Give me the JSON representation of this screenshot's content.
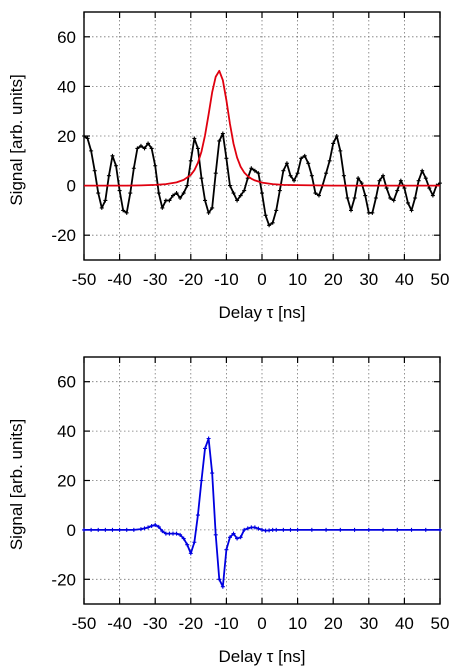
{
  "chart_data": [
    {
      "type": "line",
      "title": "",
      "xlabel": "Delay τ [ns]",
      "ylabel": "Signal [arb. units]",
      "xlim": [
        -50,
        50
      ],
      "ylim": [
        -30,
        70
      ],
      "xticks": [
        -50,
        -40,
        -30,
        -20,
        -10,
        0,
        10,
        20,
        30,
        40,
        50
      ],
      "yticks": [
        -20,
        0,
        20,
        40,
        60
      ],
      "grid": true,
      "series": [
        {
          "color": "#000000",
          "markers": true,
          "x": [
            -50,
            -49,
            -48,
            -47,
            -46,
            -45,
            -44,
            -43,
            -42,
            -41,
            -40,
            -39,
            -38,
            -37,
            -36,
            -35,
            -34,
            -33,
            -32,
            -31,
            -30,
            -29,
            -28,
            -27,
            -26,
            -25,
            -24,
            -23,
            -22,
            -21,
            -20,
            -19,
            -18,
            -17,
            -16,
            -15,
            -14,
            -13,
            -12,
            -11,
            -10,
            -9,
            -8,
            -7,
            -6,
            -5,
            -4,
            -3,
            -2,
            -1,
            0,
            1,
            2,
            3,
            4,
            5,
            6,
            7,
            8,
            9,
            10,
            11,
            12,
            13,
            14,
            15,
            16,
            17,
            18,
            19,
            20,
            21,
            22,
            23,
            24,
            25,
            26,
            27,
            28,
            29,
            30,
            31,
            32,
            33,
            34,
            35,
            36,
            37,
            38,
            39,
            40,
            41,
            42,
            43,
            44,
            45,
            46,
            47,
            48,
            49,
            50
          ],
          "y": [
            20,
            19,
            14,
            6,
            -3,
            -9,
            -6,
            4,
            12,
            8,
            -2,
            -10,
            -11,
            -3,
            7,
            15,
            16,
            15,
            17,
            15,
            8,
            -3,
            -9,
            -6,
            -6,
            -4,
            -3,
            -5,
            -3,
            0,
            10,
            19,
            15,
            3,
            -6,
            -11,
            -9,
            5,
            18,
            21,
            11,
            0,
            -3,
            -6,
            -4,
            -2,
            3,
            7,
            6,
            5,
            -3,
            -12,
            -16,
            -15,
            -10,
            -2,
            6,
            9,
            4,
            2,
            5,
            11,
            12,
            9,
            4,
            -3,
            -4,
            0,
            5,
            10,
            17,
            20,
            14,
            4,
            -5,
            -10,
            -5,
            3,
            1,
            -4,
            -11,
            -11,
            -5,
            2,
            4,
            -1,
            -5,
            -6,
            -2,
            2,
            -1,
            -7,
            -10,
            -5,
            2,
            6,
            3,
            -1,
            -4,
            0,
            1
          ]
        },
        {
          "color": "#e0000f",
          "markers": false,
          "x": [
            -50,
            -46,
            -42,
            -38,
            -34,
            -30,
            -27,
            -24,
            -22,
            -20,
            -19,
            -18,
            -17,
            -16,
            -15,
            -14,
            -13,
            -12,
            -11,
            -10,
            -9,
            -8,
            -7,
            -6,
            -5,
            -4,
            -3,
            -2,
            0,
            3,
            6,
            10,
            15,
            20,
            30,
            40,
            50
          ],
          "y": [
            0,
            0,
            0,
            0,
            0.1,
            0.3,
            0.6,
            1.3,
            2.3,
            4.3,
            6.2,
            9.2,
            13.7,
            20.3,
            28.7,
            37.6,
            43.9,
            46.3,
            42.5,
            34.4,
            24.9,
            16.9,
            11.3,
            7.6,
            5.3,
            3.8,
            2.8,
            2.1,
            1.2,
            0.6,
            0.3,
            0.2,
            0.1,
            0,
            0,
            0,
            0
          ]
        }
      ]
    },
    {
      "type": "line",
      "title": "",
      "xlabel": "Delay τ [ns]",
      "ylabel": "Signal [arb. units]",
      "xlim": [
        -50,
        50
      ],
      "ylim": [
        -30,
        70
      ],
      "xticks": [
        -50,
        -40,
        -30,
        -20,
        -10,
        0,
        10,
        20,
        30,
        40,
        50
      ],
      "yticks": [
        -20,
        0,
        20,
        40,
        60
      ],
      "grid": true,
      "series": [
        {
          "color": "#0000e0",
          "markers": true,
          "x": [
            -50,
            -48,
            -46,
            -44,
            -42,
            -40,
            -38,
            -36,
            -34,
            -33,
            -32,
            -31,
            -30,
            -29,
            -28,
            -27,
            -26,
            -25,
            -24,
            -23,
            -22,
            -21,
            -20,
            -19,
            -18,
            -17,
            -16,
            -15,
            -14,
            -13,
            -12,
            -11,
            -10,
            -9,
            -8,
            -7,
            -6,
            -5,
            -4,
            -3,
            -2,
            -1,
            0,
            1,
            2,
            3,
            4,
            6,
            8,
            10,
            14,
            18,
            22,
            26,
            30,
            34,
            38,
            42,
            46,
            50
          ],
          "y": [
            0,
            0,
            0,
            0,
            0,
            0,
            0,
            0,
            0.3,
            0.6,
            1,
            1.6,
            2,
            1.2,
            -0.5,
            -1.5,
            -1.5,
            -1.5,
            -1.5,
            -2,
            -3.5,
            -6,
            -9.5,
            -5,
            6,
            20,
            33,
            37,
            23,
            -2,
            -20,
            -23,
            -8,
            -3,
            -1.5,
            -3.5,
            -3,
            0,
            0.6,
            1,
            1,
            0.5,
            0,
            -0.3,
            -0.2,
            0,
            0,
            0,
            0,
            0,
            0,
            0,
            0,
            0,
            0,
            0,
            0,
            0,
            0,
            0
          ]
        }
      ]
    }
  ]
}
